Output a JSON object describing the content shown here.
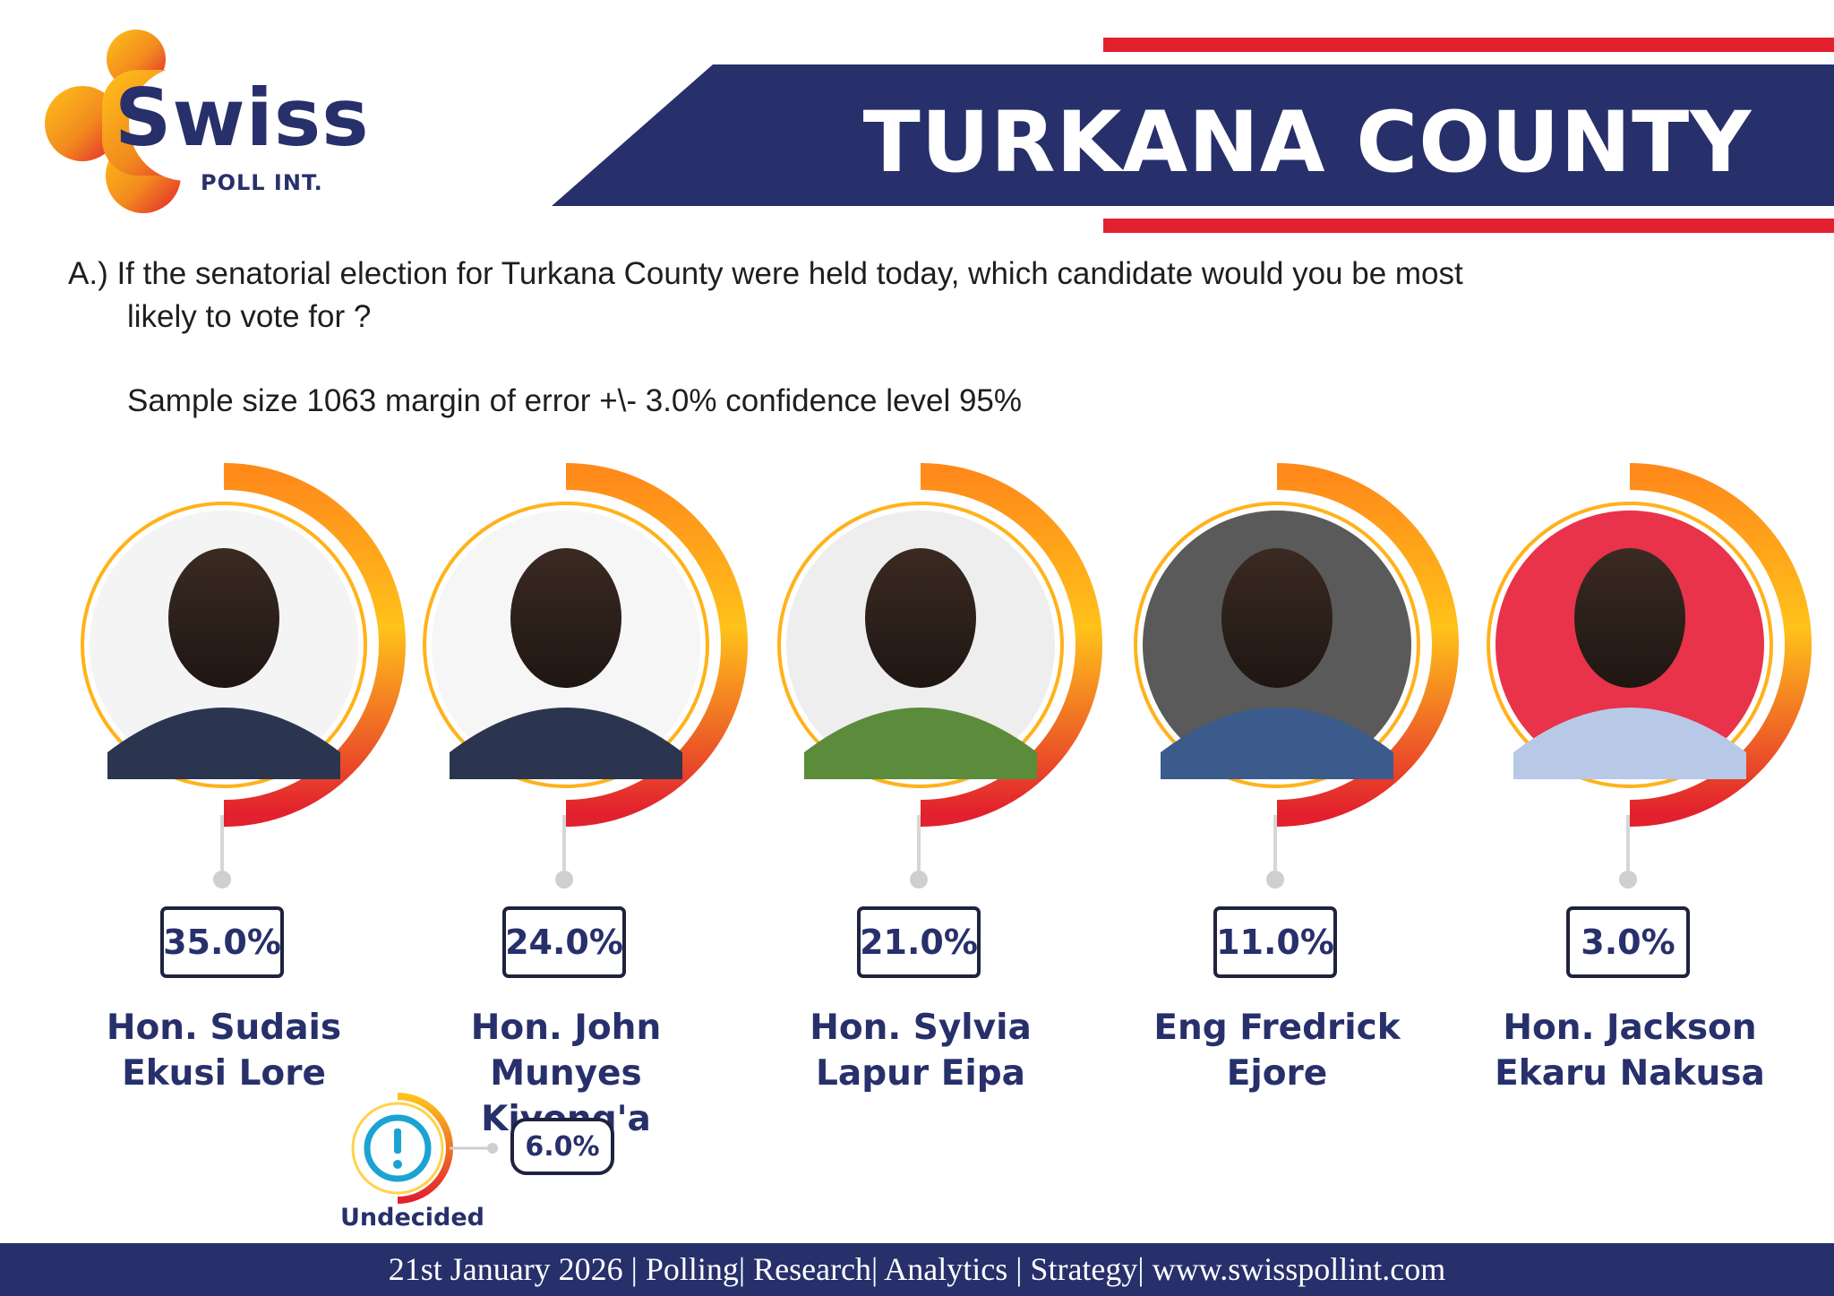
{
  "brand": {
    "name": "Swiss",
    "sub": "POLL INT.",
    "colors": {
      "navy": "#27306b",
      "red": "#e2202e",
      "orange": "#f28a1e",
      "yellow": "#ffc21a"
    }
  },
  "header": {
    "title": "TURKANA COUNTY"
  },
  "question": {
    "line1": "A.) If the senatorial  election for Turkana County were held today, which candidate would you be most",
    "line2": "likely to vote for ?",
    "sample": "Sample size 1063  margin of error +\\- 3.0% confidence level 95%"
  },
  "chart_data": {
    "type": "bar",
    "categories": [
      "Hon. Sudais Ekusi Lore",
      "Hon. John Munyes Kiyong'a",
      "Hon. Sylvia Lapur Eipa",
      "Eng Fredrick Ejore",
      "Hon. Jackson Ekaru Nakusa",
      "Undecided"
    ],
    "values": [
      35.0,
      24.0,
      21.0,
      11.0,
      3.0,
      6.0
    ],
    "labels": [
      "35.0%",
      "24.0%",
      "21.0%",
      "11.0%",
      "3.0%",
      "6.0%"
    ],
    "candidates": [
      {
        "name_line1": "Hon. Sudais",
        "name_line2": "Ekusi Lore",
        "pct": "35.0%",
        "photo": "portrait-photo"
      },
      {
        "name_line1": "Hon. John",
        "name_line2": "Munyes Kiyong'a",
        "pct": "24.0%",
        "photo": "portrait-photo"
      },
      {
        "name_line1": "Hon. Sylvia",
        "name_line2": "Lapur Eipa",
        "pct": "21.0%",
        "photo": "portrait-photo"
      },
      {
        "name_line1": "Eng Fredrick",
        "name_line2": "Ejore",
        "pct": "11.0%",
        "photo": "portrait-photo"
      },
      {
        "name_line1": "Hon. Jackson",
        "name_line2": "Ekaru Nakusa",
        "pct": "3.0%",
        "photo": "portrait-photo"
      }
    ],
    "undecided": {
      "label": "Undecided",
      "pct": "6.0%",
      "icon": "exclamation-icon"
    }
  },
  "footer": {
    "text": "21st January 2026 | Polling| Research| Analytics | Strategy| www.swisspollint.com"
  }
}
